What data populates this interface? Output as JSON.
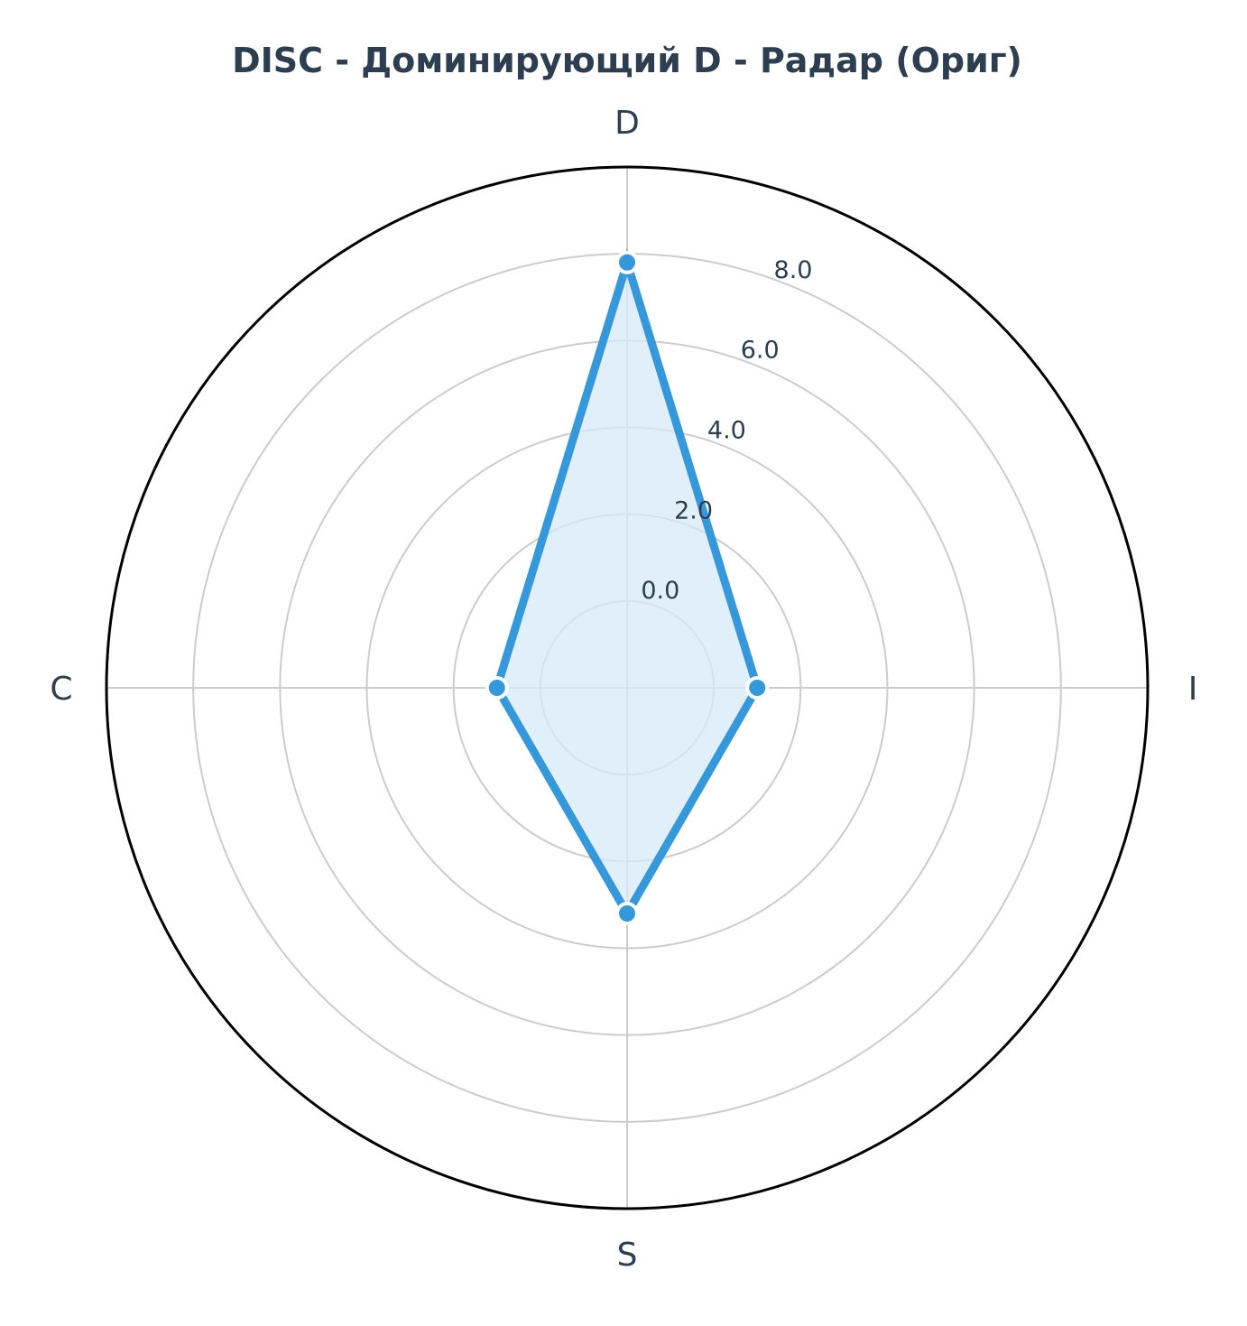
{
  "chart_data": {
    "type": "radar",
    "title": "DISC - Доминирующий D - Радар (Ориг)",
    "categories": [
      "D",
      "I",
      "S",
      "C"
    ],
    "series": [
      {
        "values": [
          7.8,
          1.0,
          3.2,
          1.0
        ]
      }
    ],
    "rlim": [
      -2,
      10
    ],
    "rticks": [
      0,
      2,
      4,
      6,
      8
    ],
    "rtick_labels": [
      "0.0",
      "2.0",
      "4.0",
      "6.0",
      "8.0"
    ],
    "grid": true,
    "colors": {
      "line": "#3498db",
      "fill": "#d6e9f8",
      "text": "#2c3e50",
      "grid": "#cccccc",
      "frame": "#000000"
    }
  }
}
